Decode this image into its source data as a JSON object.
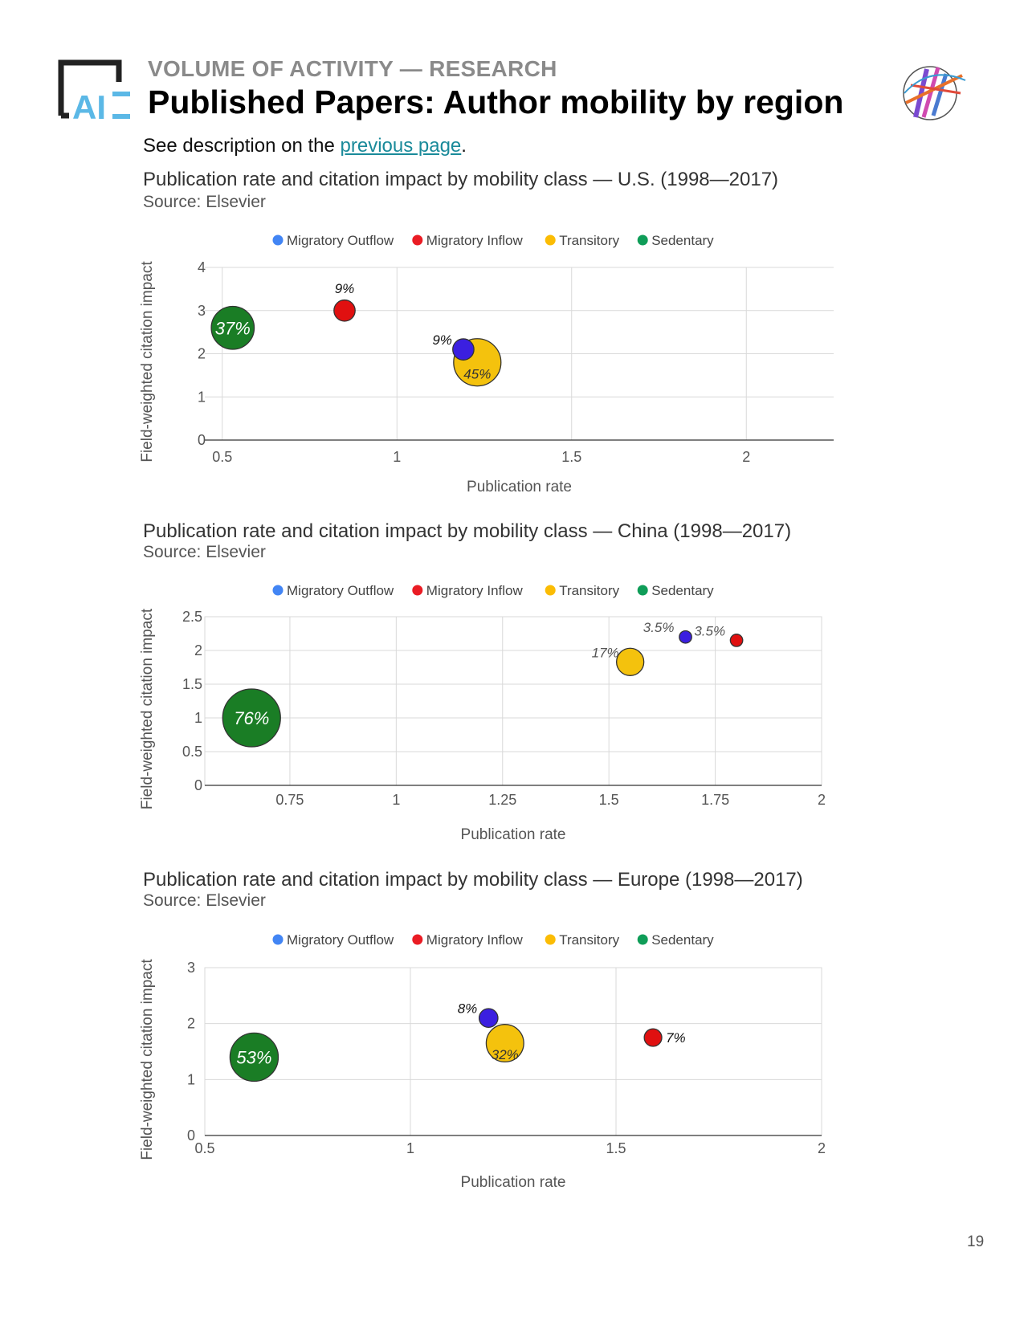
{
  "header": {
    "kicker": "VOLUME OF ACTIVITY — RESEARCH",
    "title": "Published Papers: Author mobility by region"
  },
  "description": {
    "prefix": "See description on the ",
    "link_text": "previous page",
    "suffix": "."
  },
  "page_number": "19",
  "colors": {
    "migratory_outflow": "#3b1fe0",
    "migratory_inflow": "#e01010",
    "transitory": "#f4c20d",
    "sedentary": "#1a7d25",
    "legend_outflow": "#4285f4",
    "legend_inflow": "#ea1c24",
    "legend_transitory": "#fbbc04",
    "legend_sedentary": "#0f9d58"
  },
  "chart_data": [
    {
      "type": "scatter",
      "title": "Publication rate and citation impact by mobility class — U.S. (1998—2017)",
      "source": "Source: Elsevier",
      "xlabel": "Publication rate",
      "ylabel": "Field-weighted citation impact",
      "xlim": [
        0.45,
        2.25
      ],
      "ylim": [
        0,
        4
      ],
      "xticks": [
        "0.5",
        "1",
        "1.5",
        "2"
      ],
      "yticks": [
        "0",
        "1",
        "2",
        "3",
        "4"
      ],
      "legend": [
        "Migratory Outflow",
        "Migratory Inflow",
        "Transitory",
        "Sedentary"
      ],
      "legend_position": "top",
      "series": [
        {
          "name": "Migratory Outflow",
          "x": 1.19,
          "y": 2.1,
          "share": 9,
          "label": "9%"
        },
        {
          "name": "Migratory Inflow",
          "x": 0.85,
          "y": 3.0,
          "share": 9,
          "label": "9%"
        },
        {
          "name": "Transitory",
          "x": 1.23,
          "y": 1.8,
          "share": 45,
          "label": "45%"
        },
        {
          "name": "Sedentary",
          "x": 0.53,
          "y": 2.6,
          "share": 37,
          "label": "37%"
        }
      ]
    },
    {
      "type": "scatter",
      "title": "Publication rate and citation impact by mobility class — China (1998—2017)",
      "source": "Source: Elsevier",
      "xlabel": "Publication rate",
      "ylabel": "Field-weighted citation impact",
      "xlim": [
        0.55,
        2.0
      ],
      "ylim": [
        0,
        2.5
      ],
      "xticks": [
        "0.75",
        "1",
        "1.25",
        "1.5",
        "1.75",
        "2"
      ],
      "yticks": [
        "0",
        "0.5",
        "1",
        "1.5",
        "2",
        "2.5"
      ],
      "legend": [
        "Migratory Outflow",
        "Migratory Inflow",
        "Transitory",
        "Sedentary"
      ],
      "legend_position": "top",
      "series": [
        {
          "name": "Migratory Outflow",
          "x": 1.68,
          "y": 2.2,
          "share": 3.5,
          "label": "3.5%"
        },
        {
          "name": "Migratory Inflow",
          "x": 1.8,
          "y": 2.15,
          "share": 3.5,
          "label": "3.5%"
        },
        {
          "name": "Transitory",
          "x": 1.55,
          "y": 1.83,
          "share": 17,
          "label": "17%"
        },
        {
          "name": "Sedentary",
          "x": 0.66,
          "y": 1.0,
          "share": 76,
          "label": "76%"
        }
      ]
    },
    {
      "type": "scatter",
      "title": "Publication rate and citation impact by mobility class — Europe (1998—2017)",
      "source": "Source: Elsevier",
      "xlabel": "Publication rate",
      "ylabel": "Field-weighted citation impact",
      "xlim": [
        0.5,
        2.0
      ],
      "ylim": [
        0,
        3
      ],
      "xticks": [
        "0.5",
        "1",
        "1.5",
        "2"
      ],
      "yticks": [
        "0",
        "1",
        "2",
        "3"
      ],
      "legend": [
        "Migratory Outflow",
        "Migratory Inflow",
        "Transitory",
        "Sedentary"
      ],
      "legend_position": "top",
      "series": [
        {
          "name": "Migratory Outflow",
          "x": 1.19,
          "y": 2.1,
          "share": 8,
          "label": "8%"
        },
        {
          "name": "Migratory Inflow",
          "x": 1.59,
          "y": 1.75,
          "share": 7,
          "label": "7%"
        },
        {
          "name": "Transitory",
          "x": 1.23,
          "y": 1.65,
          "share": 32,
          "label": "32%"
        },
        {
          "name": "Sedentary",
          "x": 0.62,
          "y": 1.4,
          "share": 53,
          "label": "53%"
        }
      ]
    }
  ]
}
